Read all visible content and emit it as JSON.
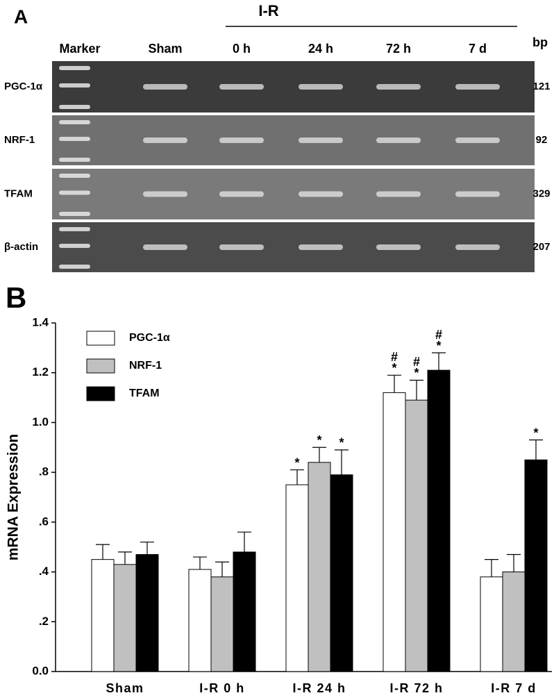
{
  "panel_a": {
    "label": "A",
    "group_label": "I-R",
    "bp_header": "bp",
    "lanes": [
      "Marker",
      "Sham",
      "0 h",
      "24 h",
      "72 h",
      "7 d"
    ],
    "rows": [
      {
        "gene": "PGC-1α",
        "bp": 121
      },
      {
        "gene": "NRF-1",
        "bp": 92
      },
      {
        "gene": "TFAM",
        "bp": 329
      },
      {
        "gene": "β-actin",
        "bp": 207
      }
    ]
  },
  "chart_data": {
    "type": "bar",
    "panel_label": "B",
    "ylabel": "mRNA Expression",
    "legend": "top-left",
    "categories": [
      "Sham",
      "I-R 0 h",
      "I-R 24 h",
      "I-R 72 h",
      "I-R 7 d"
    ],
    "series": [
      {
        "name": "PGC-1α",
        "color": "#ffffff",
        "values": [
          0.45,
          0.41,
          0.75,
          1.12,
          0.38
        ],
        "errors": [
          0.06,
          0.05,
          0.06,
          0.07,
          0.07
        ],
        "annotations": [
          null,
          null,
          [
            "*"
          ],
          [
            "#",
            "*"
          ],
          null
        ]
      },
      {
        "name": "NRF-1",
        "color": "#c0c0c0",
        "values": [
          0.43,
          0.38,
          0.84,
          1.09,
          0.4
        ],
        "errors": [
          0.05,
          0.06,
          0.06,
          0.08,
          0.07
        ],
        "annotations": [
          null,
          null,
          [
            "*"
          ],
          [
            "#",
            "*"
          ],
          null
        ]
      },
      {
        "name": "TFAM",
        "color": "#000000",
        "values": [
          0.47,
          0.48,
          0.79,
          1.21,
          0.85
        ],
        "errors": [
          0.05,
          0.08,
          0.1,
          0.07,
          0.08
        ],
        "annotations": [
          null,
          null,
          [
            "*"
          ],
          [
            "#",
            "*"
          ],
          [
            "*"
          ]
        ]
      }
    ],
    "ylim": [
      0,
      1.4
    ],
    "yticks": [
      {
        "value": 0,
        "label": "0.0"
      },
      {
        "value": 0.2,
        "label": ".2"
      },
      {
        "value": 0.4,
        "label": ".4"
      },
      {
        "value": 0.6,
        "label": ".6"
      },
      {
        "value": 0.8,
        "label": ".8"
      },
      {
        "value": 1.0,
        "label": "1.0"
      },
      1.2,
      1.4
    ]
  }
}
